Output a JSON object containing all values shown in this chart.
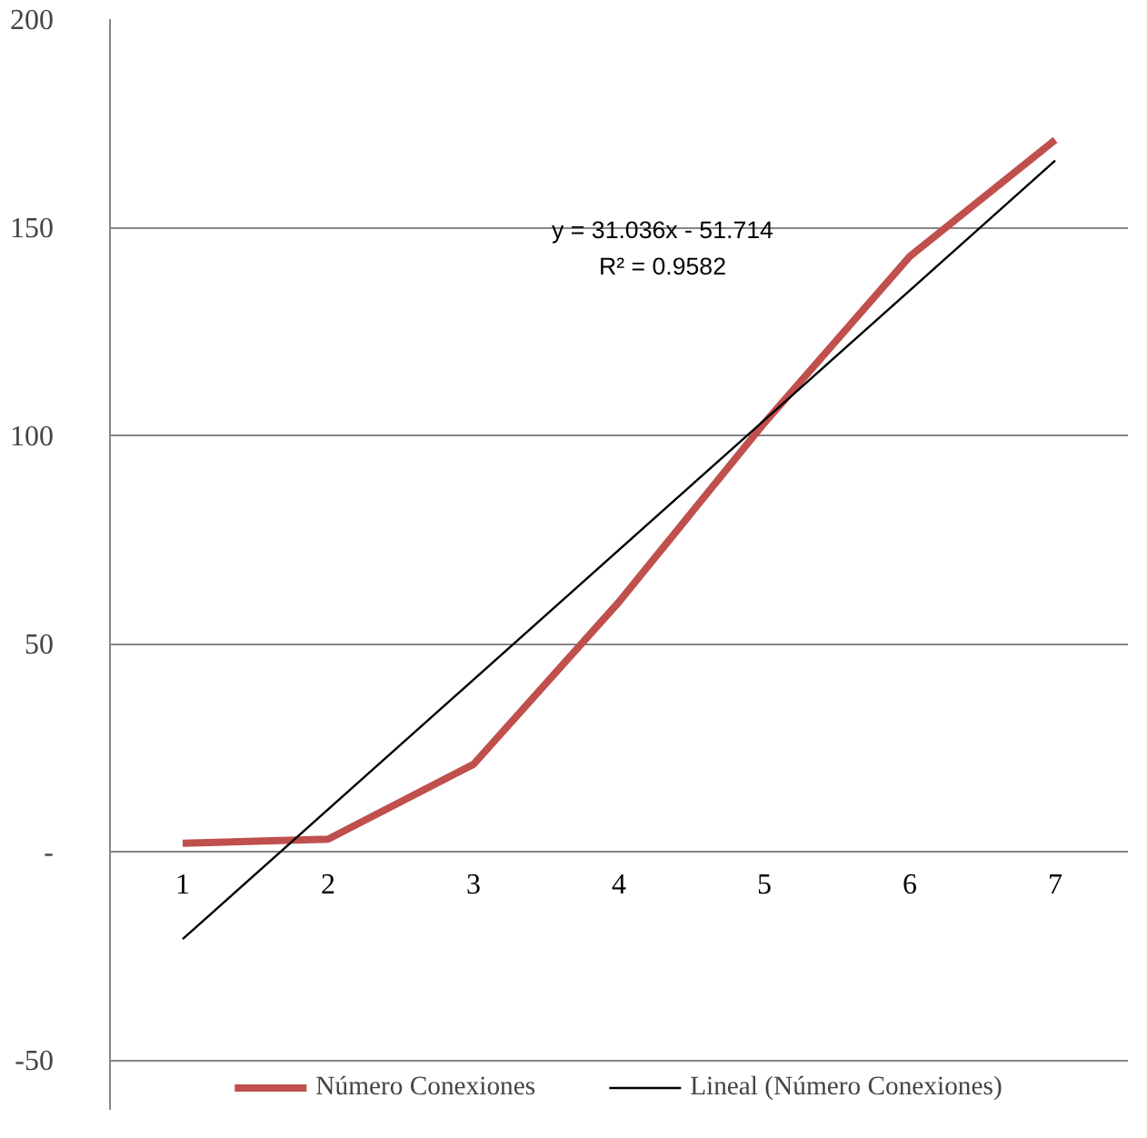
{
  "chart_data": {
    "type": "line",
    "x": [
      1,
      2,
      3,
      4,
      5,
      6,
      7
    ],
    "series": [
      {
        "name": "Número Conexiones",
        "color": "#c0504d",
        "values": [
          2,
          3,
          21,
          60,
          103,
          143,
          171
        ]
      },
      {
        "name": "Lineal (Número Conexiones)",
        "color": "#000000",
        "type": "line",
        "x": [
          1,
          7
        ],
        "values": [
          -21,
          166
        ]
      }
    ],
    "xlim": [
      0.5,
      7.5
    ],
    "xticks": [
      1,
      2,
      3,
      4,
      5,
      6,
      7
    ],
    "ylim": [
      -62,
      200
    ],
    "yticks": [
      -50,
      {
        "value": 0,
        "label": "-"
      },
      50,
      100,
      150,
      200
    ],
    "grid": "y",
    "legend": "bottom",
    "marker": "none",
    "line_style": "solid",
    "annotations": [
      "y = 31.036x - 51.714",
      "R² = 0.9582"
    ]
  }
}
